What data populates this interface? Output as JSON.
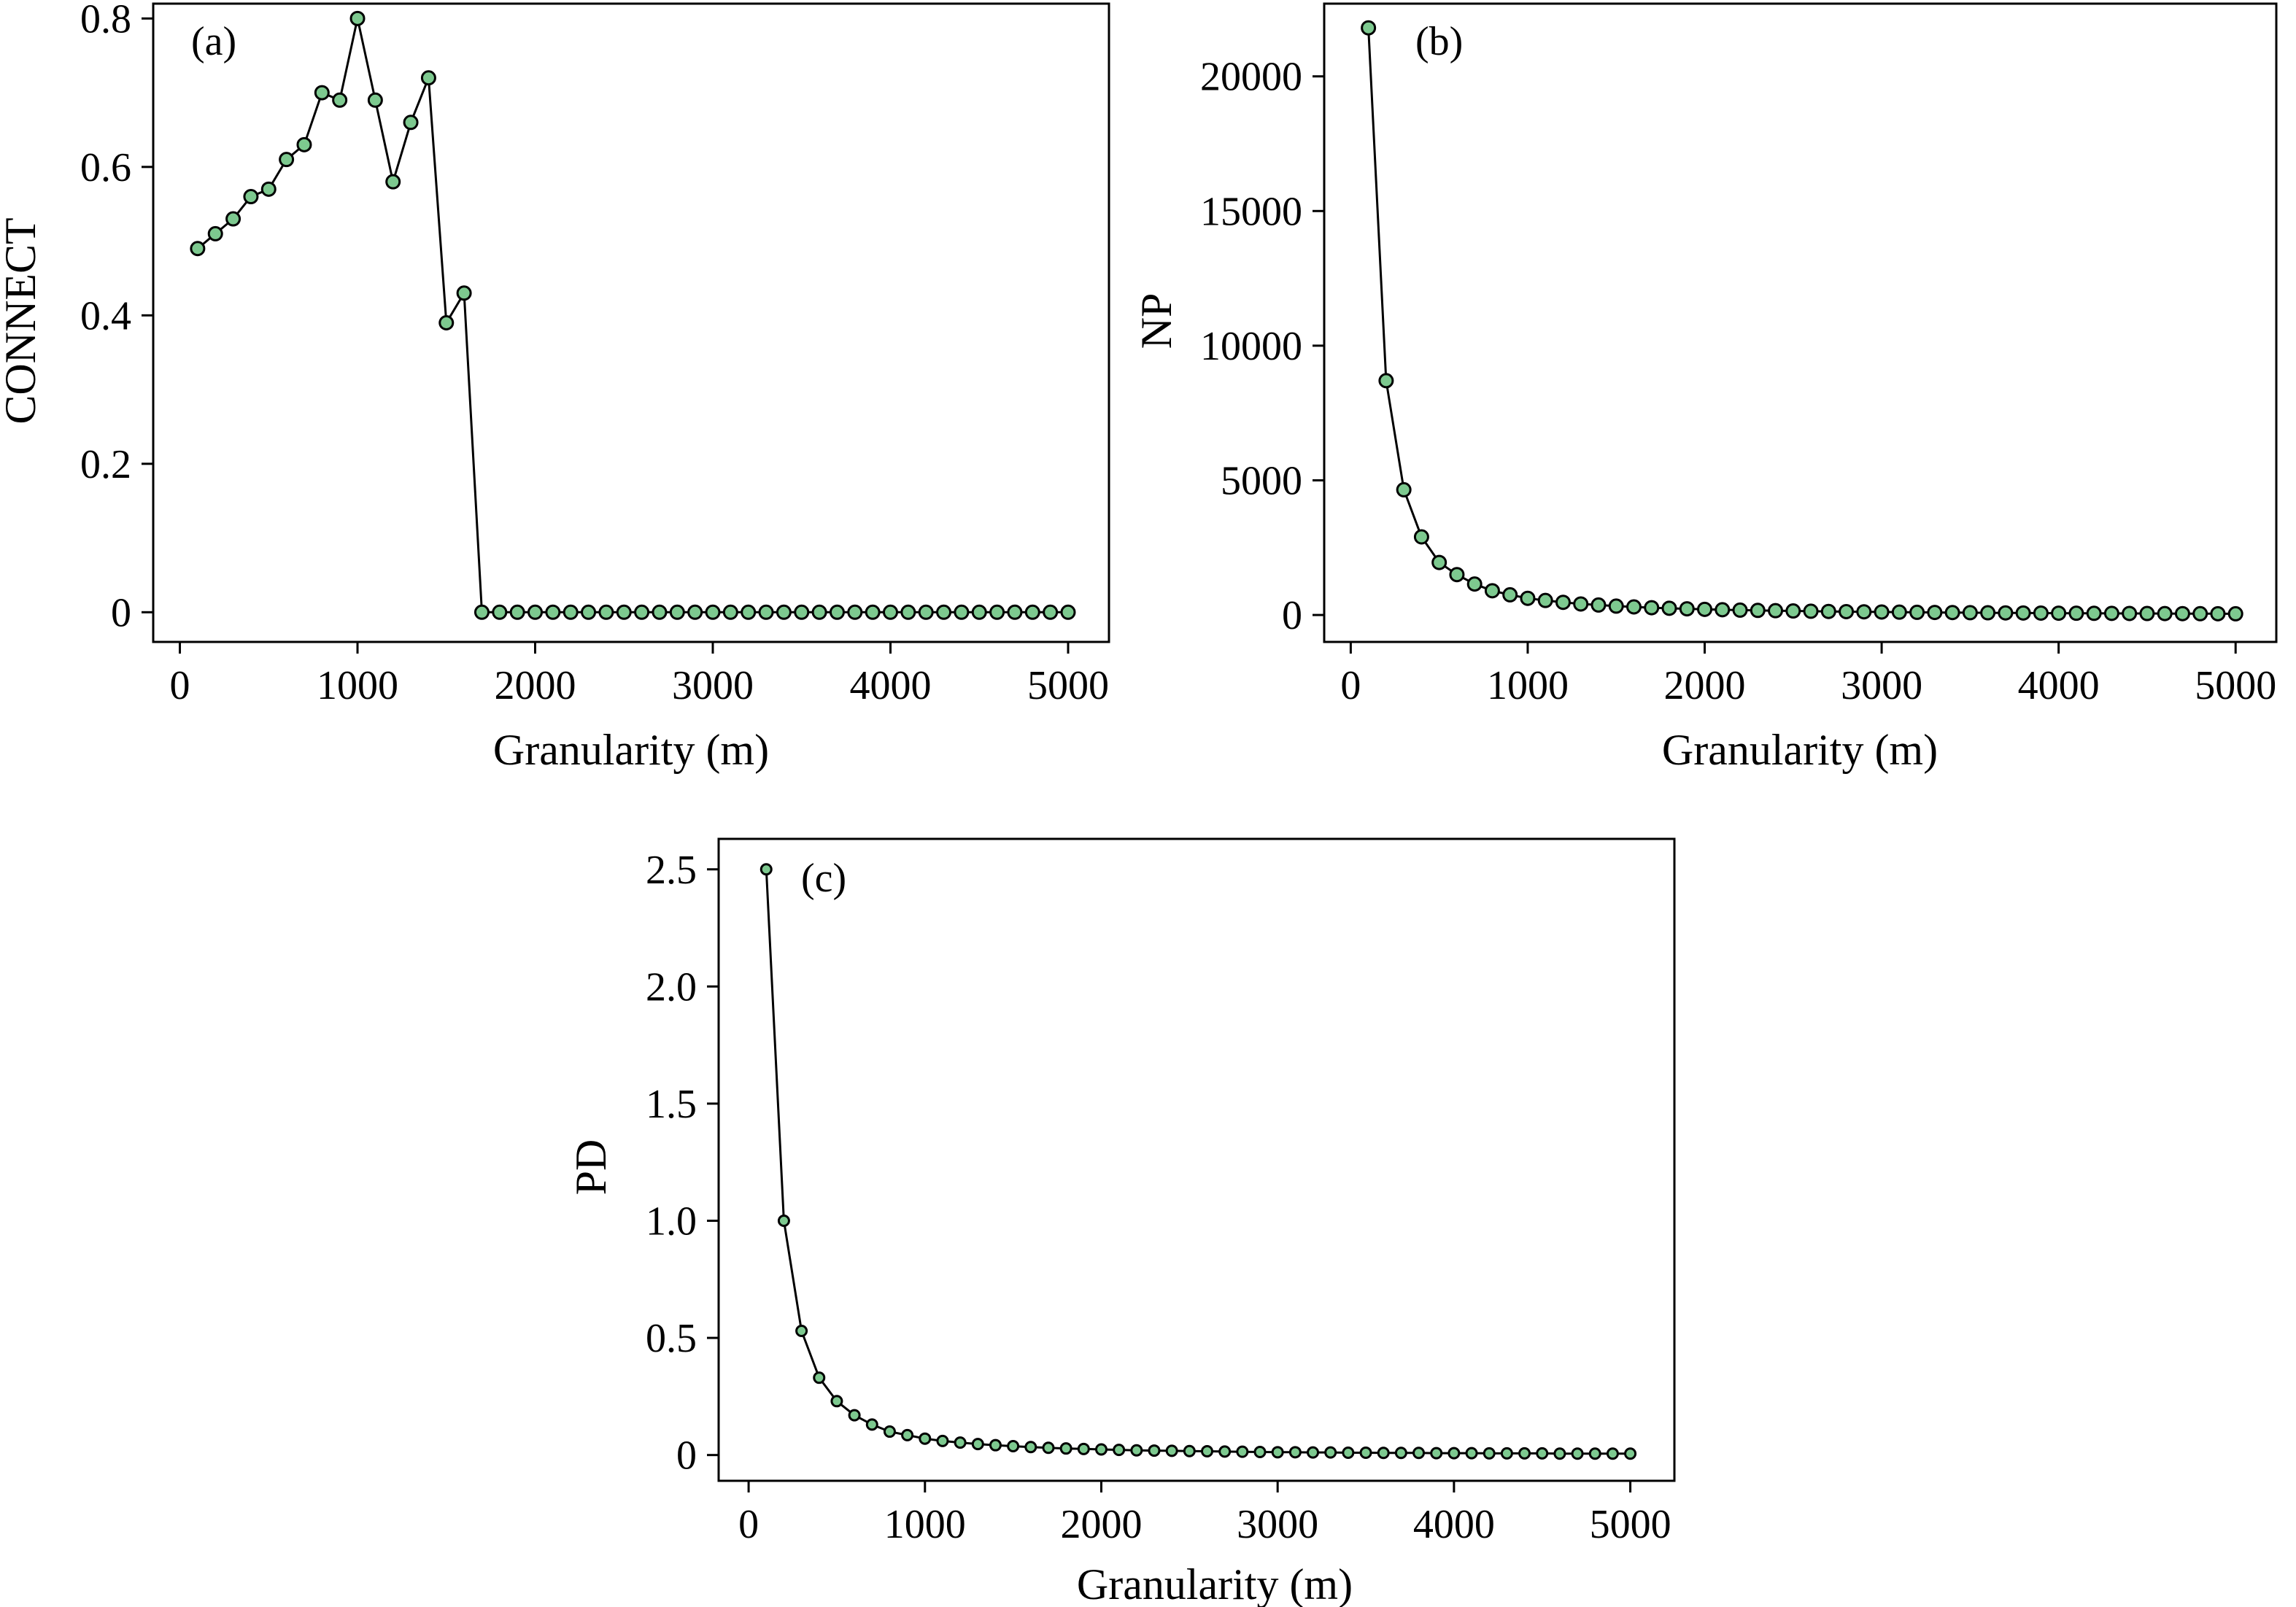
{
  "chart_data": [
    {
      "type": "line",
      "panel_label": "(a)",
      "xlabel": "Granularity (m)",
      "ylabel": "CONNECT",
      "xlim": [
        -150,
        5230
      ],
      "ylim": [
        -0.04,
        0.82
      ],
      "xticks": [
        0,
        1000,
        2000,
        3000,
        4000,
        5000
      ],
      "xtick_labels": [
        "0",
        "1000",
        "2000",
        "3000",
        "4000",
        "5000"
      ],
      "yticks": [
        0,
        0.2,
        0.4,
        0.6,
        0.8
      ],
      "ytick_labels": [
        "0",
        "0.2",
        "0.4",
        "0.6",
        "0.8"
      ],
      "grid": false,
      "marker_color": "#7dc98f",
      "series": [
        {
          "x": [
            100,
            200,
            300,
            400,
            500,
            600,
            700,
            800,
            900,
            1000,
            1100,
            1200,
            1300,
            1400,
            1500,
            1600,
            1700,
            1800,
            1900,
            2000,
            2100,
            2200,
            2300,
            2400,
            2500,
            2600,
            2700,
            2800,
            2900,
            3000,
            3100,
            3200,
            3300,
            3400,
            3500,
            3600,
            3700,
            3800,
            3900,
            4000,
            4100,
            4200,
            4300,
            4400,
            4500,
            4600,
            4700,
            4800,
            4900,
            5000
          ],
          "values": [
            0.49,
            0.51,
            0.53,
            0.56,
            0.57,
            0.61,
            0.63,
            0.7,
            0.69,
            0.8,
            0.69,
            0.58,
            0.66,
            0.72,
            0.39,
            0.43,
            0,
            0,
            0,
            0,
            0,
            0,
            0,
            0,
            0,
            0,
            0,
            0,
            0,
            0,
            0,
            0,
            0,
            0,
            0,
            0,
            0,
            0,
            0,
            0,
            0,
            0,
            0,
            0,
            0,
            0,
            0,
            0,
            0,
            0
          ]
        }
      ]
    },
    {
      "type": "line",
      "panel_label": "(b)",
      "xlabel": "Granularity (m)",
      "ylabel": "NP",
      "xlim": [
        -150,
        5230
      ],
      "ylim": [
        -1000,
        22700
      ],
      "xticks": [
        0,
        1000,
        2000,
        3000,
        4000,
        5000
      ],
      "xtick_labels": [
        "0",
        "1000",
        "2000",
        "3000",
        "4000",
        "5000"
      ],
      "yticks": [
        0,
        5000,
        10000,
        15000,
        20000
      ],
      "ytick_labels": [
        "0",
        "5000",
        "10000",
        "15000",
        "20000"
      ],
      "grid": false,
      "marker_color": "#7dc98f",
      "series": [
        {
          "x": [
            100,
            200,
            300,
            400,
            500,
            600,
            700,
            800,
            900,
            1000,
            1100,
            1200,
            1300,
            1400,
            1500,
            1600,
            1700,
            1800,
            1900,
            2000,
            2100,
            2200,
            2300,
            2400,
            2500,
            2600,
            2700,
            2800,
            2900,
            3000,
            3100,
            3200,
            3300,
            3400,
            3500,
            3600,
            3700,
            3800,
            3900,
            4000,
            4100,
            4200,
            4300,
            4400,
            4500,
            4600,
            4700,
            4800,
            4900,
            5000
          ],
          "values": [
            21800,
            8700,
            4650,
            2900,
            1950,
            1500,
            1150,
            900,
            750,
            620,
            540,
            470,
            410,
            370,
            330,
            300,
            270,
            250,
            230,
            210,
            195,
            180,
            170,
            160,
            150,
            140,
            132,
            125,
            118,
            112,
            106,
            100,
            95,
            90,
            86,
            82,
            78,
            74,
            71,
            68,
            65,
            62,
            60,
            57,
            55,
            53,
            51,
            49,
            47,
            45
          ]
        }
      ]
    },
    {
      "type": "line",
      "panel_label": "(c)",
      "xlabel": "Granularity (m)",
      "ylabel": "PD",
      "xlim": [
        -170,
        5250
      ],
      "ylim": [
        -0.11,
        2.63
      ],
      "xticks": [
        0,
        1000,
        2000,
        3000,
        4000,
        5000
      ],
      "xtick_labels": [
        "0",
        "1000",
        "2000",
        "3000",
        "4000",
        "5000"
      ],
      "yticks": [
        0,
        0.5,
        1.0,
        1.5,
        2.0,
        2.5
      ],
      "ytick_labels": [
        "0",
        "0.5",
        "1.0",
        "1.5",
        "2.0",
        "2.5"
      ],
      "grid": false,
      "marker_color": "#7dc98f",
      "series": [
        {
          "x": [
            100,
            200,
            300,
            400,
            500,
            600,
            700,
            800,
            900,
            1000,
            1100,
            1200,
            1300,
            1400,
            1500,
            1600,
            1700,
            1800,
            1900,
            2000,
            2100,
            2200,
            2300,
            2400,
            2500,
            2600,
            2700,
            2800,
            2900,
            3000,
            3100,
            3200,
            3300,
            3400,
            3500,
            3600,
            3700,
            3800,
            3900,
            4000,
            4100,
            4200,
            4300,
            4400,
            4500,
            4600,
            4700,
            4800,
            4900,
            5000
          ],
          "values": [
            2.5,
            1.0,
            0.53,
            0.33,
            0.23,
            0.17,
            0.13,
            0.1,
            0.085,
            0.07,
            0.06,
            0.053,
            0.047,
            0.042,
            0.038,
            0.034,
            0.031,
            0.028,
            0.026,
            0.024,
            0.022,
            0.02,
            0.019,
            0.018,
            0.017,
            0.016,
            0.015,
            0.014,
            0.013,
            0.012,
            0.012,
            0.011,
            0.011,
            0.01,
            0.01,
            0.009,
            0.009,
            0.009,
            0.008,
            0.008,
            0.008,
            0.007,
            0.007,
            0.007,
            0.007,
            0.006,
            0.006,
            0.006,
            0.006,
            0.006
          ]
        }
      ]
    }
  ]
}
